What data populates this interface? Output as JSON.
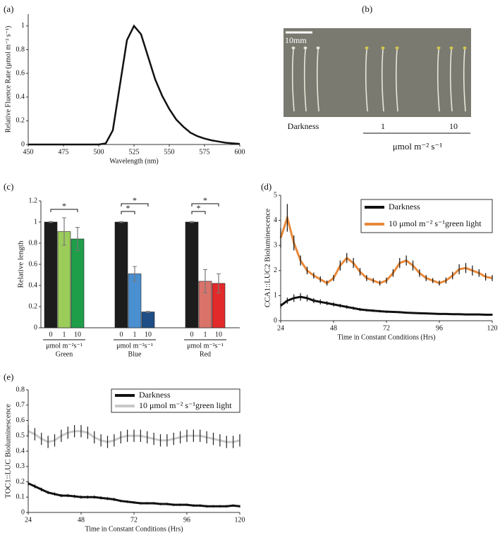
{
  "chart_data": [
    {
      "type": "line",
      "panel_label": "(a)",
      "x_label": "Wavelength (nm)",
      "y_label": "Relative  Fluence Rate (μmol m⁻² s⁻¹)",
      "xlim": [
        450,
        600
      ],
      "xticks": [
        450,
        475,
        500,
        525,
        550,
        575,
        600
      ],
      "ylim": [
        0,
        1.1
      ],
      "yticks": [
        0,
        0.2,
        0.4,
        0.6,
        0.8,
        1
      ],
      "x": [
        450,
        455,
        460,
        465,
        470,
        475,
        480,
        485,
        490,
        495,
        500,
        505,
        510,
        515,
        520,
        525,
        530,
        535,
        540,
        545,
        550,
        555,
        560,
        565,
        570,
        575,
        580,
        585,
        590,
        595,
        600
      ],
      "series": [
        {
          "color": "#111111",
          "values": [
            0,
            0,
            0,
            0,
            0,
            0,
            0,
            0,
            0,
            0,
            0,
            0.01,
            0.12,
            0.5,
            0.88,
            1,
            0.93,
            0.74,
            0.55,
            0.41,
            0.3,
            0.21,
            0.15,
            0.1,
            0.07,
            0.05,
            0.035,
            0.025,
            0.015,
            0.01,
            0.005
          ]
        }
      ]
    },
    {
      "type": "bar",
      "panel_label": "(c)",
      "y_label": "Relative length",
      "x_unit": "μmol m⁻²s⁻¹",
      "ylim": [
        0,
        1.2
      ],
      "yticks": [
        0,
        0.2,
        0.4,
        0.6,
        0.8,
        1,
        1.2
      ],
      "categories": [
        "Green",
        "Blue",
        "Red"
      ],
      "annotations": [
        "*",
        "*",
        "*",
        "*",
        "*"
      ],
      "series": [
        {
          "name": "0",
          "colors": [
            "#1c1c1c",
            "#1c1c1c",
            "#1c1c1c"
          ],
          "values": [
            1,
            1,
            1
          ],
          "errors": [
            0.005,
            0.005,
            0.005
          ]
        },
        {
          "name": "1",
          "colors": [
            "#9ccc5a",
            "#4a8fd0",
            "#d9736a"
          ],
          "values": [
            0.91,
            0.51,
            0.44
          ],
          "errors": [
            0.13,
            0.07,
            0.11
          ]
        },
        {
          "name": "10",
          "colors": [
            "#1f9e4a",
            "#1f4e86",
            "#e32a2a"
          ],
          "values": [
            0.84,
            0.15,
            0.42
          ],
          "errors": [
            0.11,
            0.005,
            0.09
          ]
        }
      ]
    },
    {
      "type": "line",
      "panel_label": "(d)",
      "x_label": "Time in Constant Conditions (Hrs)",
      "y_label": "CCA1::LUC2 Bioluminescence",
      "xlim": [
        24,
        120
      ],
      "xticks": [
        24,
        48,
        72,
        96,
        120
      ],
      "ylim": [
        0,
        5
      ],
      "yticks": [
        0,
        1,
        2,
        3,
        4,
        5
      ],
      "legend": "upper right",
      "x": [
        24,
        27,
        30,
        33,
        36,
        39,
        42,
        45,
        48,
        51,
        54,
        57,
        60,
        63,
        66,
        69,
        72,
        75,
        78,
        81,
        84,
        87,
        90,
        93,
        96,
        99,
        102,
        105,
        108,
        111,
        114,
        117,
        120
      ],
      "series": [
        {
          "name": "Darkness",
          "color": "#111111",
          "error_color": "#111111",
          "values": [
            0.6,
            0.8,
            0.9,
            0.95,
            0.9,
            0.8,
            0.75,
            0.7,
            0.65,
            0.6,
            0.55,
            0.5,
            0.45,
            0.42,
            0.4,
            0.38,
            0.36,
            0.35,
            0.34,
            0.32,
            0.31,
            0.3,
            0.29,
            0.28,
            0.27,
            0.27,
            0.26,
            0.26,
            0.25,
            0.25,
            0.25,
            0.24,
            0.24
          ],
          "errors": [
            0.1,
            0.12,
            0.15,
            0.15,
            0.13,
            0.1,
            0.1,
            0.08,
            0.08,
            0.07,
            0.07,
            0.06,
            0.06,
            0.05,
            0.05,
            0.05,
            0.05,
            0.04,
            0.04,
            0.04,
            0.04,
            0.04,
            0.03,
            0.03,
            0.03,
            0.03,
            0.03,
            0.03,
            0.03,
            0.03,
            0.03,
            0.03,
            0.03
          ]
        },
        {
          "name": "10 μmol m⁻² s⁻¹green light",
          "color": "#e8893a",
          "error_color": "#111111",
          "values": [
            3.3,
            4.1,
            3.1,
            2.4,
            2.0,
            1.8,
            1.65,
            1.5,
            1.7,
            2.2,
            2.5,
            2.3,
            1.95,
            1.7,
            1.6,
            1.5,
            1.6,
            1.9,
            2.3,
            2.4,
            2.2,
            1.9,
            1.7,
            1.6,
            1.5,
            1.6,
            1.8,
            2.05,
            2.1,
            2.0,
            1.9,
            1.75,
            1.7
          ],
          "errors": [
            0.4,
            0.55,
            0.3,
            0.2,
            0.15,
            0.12,
            0.12,
            0.1,
            0.12,
            0.2,
            0.2,
            0.2,
            0.15,
            0.12,
            0.1,
            0.1,
            0.12,
            0.15,
            0.2,
            0.2,
            0.2,
            0.15,
            0.12,
            0.1,
            0.1,
            0.12,
            0.15,
            0.2,
            0.2,
            0.2,
            0.15,
            0.15,
            0.12
          ]
        }
      ]
    },
    {
      "type": "line",
      "panel_label": "(e)",
      "x_label": "Time in Constant Conditions (Hrs)",
      "y_label": "TOC1::LUC Bioluminescence",
      "xlim": [
        24,
        120
      ],
      "xticks": [
        24,
        48,
        72,
        96,
        120
      ],
      "ylim": [
        0,
        0.8
      ],
      "yticks": [
        0,
        0.1,
        0.2,
        0.3,
        0.4,
        0.5,
        0.6,
        0.7,
        0.8
      ],
      "legend": "upper center",
      "x": [
        24,
        27,
        30,
        33,
        36,
        39,
        42,
        45,
        48,
        51,
        54,
        57,
        60,
        63,
        66,
        69,
        72,
        75,
        78,
        81,
        84,
        87,
        90,
        93,
        96,
        99,
        102,
        105,
        108,
        111,
        114,
        117,
        120
      ],
      "series": [
        {
          "name": "Darkness",
          "color": "#111111",
          "error_color": "#111111",
          "values": [
            0.19,
            0.17,
            0.15,
            0.13,
            0.12,
            0.11,
            0.11,
            0.105,
            0.1,
            0.1,
            0.1,
            0.095,
            0.09,
            0.085,
            0.075,
            0.07,
            0.065,
            0.06,
            0.06,
            0.06,
            0.055,
            0.055,
            0.05,
            0.05,
            0.05,
            0.045,
            0.045,
            0.04,
            0.04,
            0.04,
            0.04,
            0.045,
            0.04
          ],
          "errors": [
            0.015,
            0.012,
            0.012,
            0.01,
            0.01,
            0.01,
            0.01,
            0.01,
            0.01,
            0.01,
            0.01,
            0.01,
            0.01,
            0.01,
            0.008,
            0.008,
            0.008,
            0.008,
            0.008,
            0.008,
            0.008,
            0.008,
            0.008,
            0.008,
            0.008,
            0.008,
            0.008,
            0.008,
            0.008,
            0.008,
            0.008,
            0.008,
            0.008
          ]
        },
        {
          "name": "10 μmol m⁻² s⁻¹green light",
          "color": "#c8c8c8",
          "error_color": "#222222",
          "values": [
            0.53,
            0.51,
            0.48,
            0.46,
            0.47,
            0.5,
            0.52,
            0.53,
            0.53,
            0.52,
            0.49,
            0.47,
            0.46,
            0.47,
            0.49,
            0.5,
            0.5,
            0.5,
            0.49,
            0.48,
            0.47,
            0.47,
            0.48,
            0.49,
            0.5,
            0.5,
            0.5,
            0.49,
            0.48,
            0.47,
            0.46,
            0.46,
            0.47
          ],
          "errors": [
            0.04,
            0.04,
            0.04,
            0.04,
            0.04,
            0.04,
            0.04,
            0.04,
            0.04,
            0.04,
            0.04,
            0.04,
            0.04,
            0.04,
            0.04,
            0.04,
            0.04,
            0.04,
            0.04,
            0.04,
            0.04,
            0.04,
            0.04,
            0.04,
            0.04,
            0.04,
            0.04,
            0.04,
            0.04,
            0.04,
            0.04,
            0.04,
            0.04
          ]
        }
      ]
    }
  ],
  "photo": {
    "panel_label": "(b)",
    "scale_label": "10mm",
    "groups": [
      "Darkness",
      "1",
      "10"
    ],
    "unit": "μmol m⁻² s⁻¹"
  }
}
